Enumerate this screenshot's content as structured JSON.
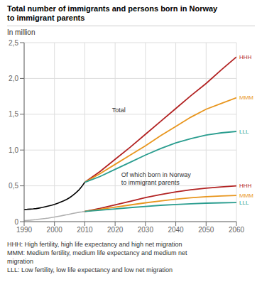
{
  "chart_data": {
    "type": "line",
    "title": "Total number of immigrants and persons born in Norway\nto immigrant parents",
    "y_label": "In million",
    "xlim": [
      1990,
      2060
    ],
    "xticks": [
      1990,
      2000,
      2010,
      2020,
      2030,
      2040,
      2050,
      2060
    ],
    "ylim": [
      0,
      2.5
    ],
    "yticks": [
      0,
      {
        "value": 0.5,
        "label": "0,5"
      },
      {
        "value": 1.0,
        "label": "1,0"
      },
      {
        "value": 1.5,
        "label": "1,5"
      },
      {
        "value": 2.0,
        "label": "2,0"
      },
      {
        "value": 2.5,
        "label": "2,5"
      }
    ],
    "grid": true,
    "series": [
      {
        "color": "#000000",
        "x": [
          1990,
          1991,
          1992,
          1993,
          1994,
          1995,
          1996,
          1997,
          1998,
          1999,
          2000,
          2001,
          2002,
          2003,
          2004,
          2005,
          2006,
          2007,
          2008,
          2009,
          2010
        ],
        "values": [
          0.17,
          0.172,
          0.175,
          0.178,
          0.182,
          0.19,
          0.198,
          0.208,
          0.218,
          0.228,
          0.24,
          0.255,
          0.272,
          0.29,
          0.31,
          0.335,
          0.365,
          0.4,
          0.44,
          0.49,
          0.55
        ]
      },
      {
        "color": "#b0b0b0",
        "x": [
          1990,
          1991,
          1992,
          1993,
          1994,
          1995,
          1996,
          1997,
          1998,
          1999,
          2000,
          2001,
          2002,
          2003,
          2004,
          2005,
          2006,
          2007,
          2008,
          2009,
          2010
        ],
        "values": [
          0.015,
          0.018,
          0.021,
          0.025,
          0.029,
          0.034,
          0.039,
          0.044,
          0.05,
          0.057,
          0.064,
          0.072,
          0.08,
          0.088,
          0.096,
          0.105,
          0.114,
          0.122,
          0.13,
          0.136,
          0.143
        ]
      },
      {
        "name": "HHH",
        "color": "#b22222",
        "x": [
          2010,
          2015,
          2020,
          2025,
          2030,
          2035,
          2040,
          2045,
          2050,
          2055,
          2060
        ],
        "values": [
          0.55,
          0.7,
          0.87,
          1.04,
          1.22,
          1.4,
          1.58,
          1.76,
          1.93,
          2.12,
          2.3
        ]
      },
      {
        "name": "MMM",
        "color": "#e8961e",
        "x": [
          2010,
          2015,
          2020,
          2025,
          2030,
          2035,
          2040,
          2045,
          2050,
          2055,
          2060
        ],
        "values": [
          0.55,
          0.67,
          0.8,
          0.93,
          1.06,
          1.2,
          1.33,
          1.46,
          1.57,
          1.65,
          1.73
        ]
      },
      {
        "name": "LLL",
        "color": "#2a9d8f",
        "x": [
          2010,
          2015,
          2020,
          2025,
          2030,
          2035,
          2040,
          2045,
          2050,
          2055,
          2060
        ],
        "values": [
          0.55,
          0.63,
          0.73,
          0.83,
          0.93,
          1.02,
          1.1,
          1.16,
          1.21,
          1.24,
          1.26
        ]
      },
      {
        "name": "HHH",
        "color": "#b22222",
        "x": [
          2010,
          2015,
          2020,
          2025,
          2030,
          2035,
          2040,
          2045,
          2050,
          2055,
          2060
        ],
        "values": [
          0.143,
          0.185,
          0.235,
          0.285,
          0.335,
          0.378,
          0.415,
          0.445,
          0.468,
          0.485,
          0.5
        ]
      },
      {
        "name": "MMM",
        "color": "#e8961e",
        "x": [
          2010,
          2015,
          2020,
          2025,
          2030,
          2035,
          2040,
          2045,
          2050,
          2055,
          2060
        ],
        "values": [
          0.143,
          0.172,
          0.203,
          0.233,
          0.263,
          0.29,
          0.313,
          0.333,
          0.348,
          0.358,
          0.365
        ]
      },
      {
        "name": "LLL",
        "color": "#2a9d8f",
        "x": [
          2010,
          2015,
          2020,
          2025,
          2030,
          2035,
          2040,
          2045,
          2050,
          2055,
          2060
        ],
        "values": [
          0.143,
          0.16,
          0.178,
          0.196,
          0.213,
          0.228,
          0.24,
          0.25,
          0.258,
          0.263,
          0.267
        ]
      }
    ],
    "annotations": [
      {
        "text": "Total",
        "x": 2019,
        "y": 1.53
      },
      {
        "text": "Of which born in Norway\nto immigrant parents",
        "x": 2022,
        "y": 0.52
      }
    ],
    "footnote": "HHH: High fertility, high life expectancy and high net migration\nMMM: Medium fertility, medium life expectancy and medium net\nmigration\nLLL: Low fertility, low life expectancy and low net migration"
  }
}
